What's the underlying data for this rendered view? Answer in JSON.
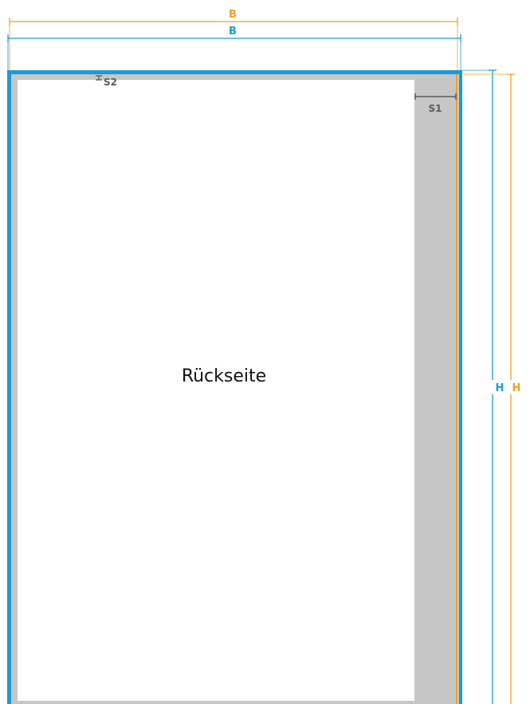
{
  "labels": {
    "width_outer": "B",
    "width_inner": "B",
    "height_inner": "H",
    "height_outer": "H",
    "spacing_right": "S1",
    "spacing_top": "S2",
    "page_side": "Rückseite"
  },
  "colors": {
    "blue": "#1a9ad6",
    "orange": "#f0a020",
    "gray_margin": "#c6c6c6",
    "dim_gray": "#5a5a5a",
    "page_white": "#ffffff"
  }
}
